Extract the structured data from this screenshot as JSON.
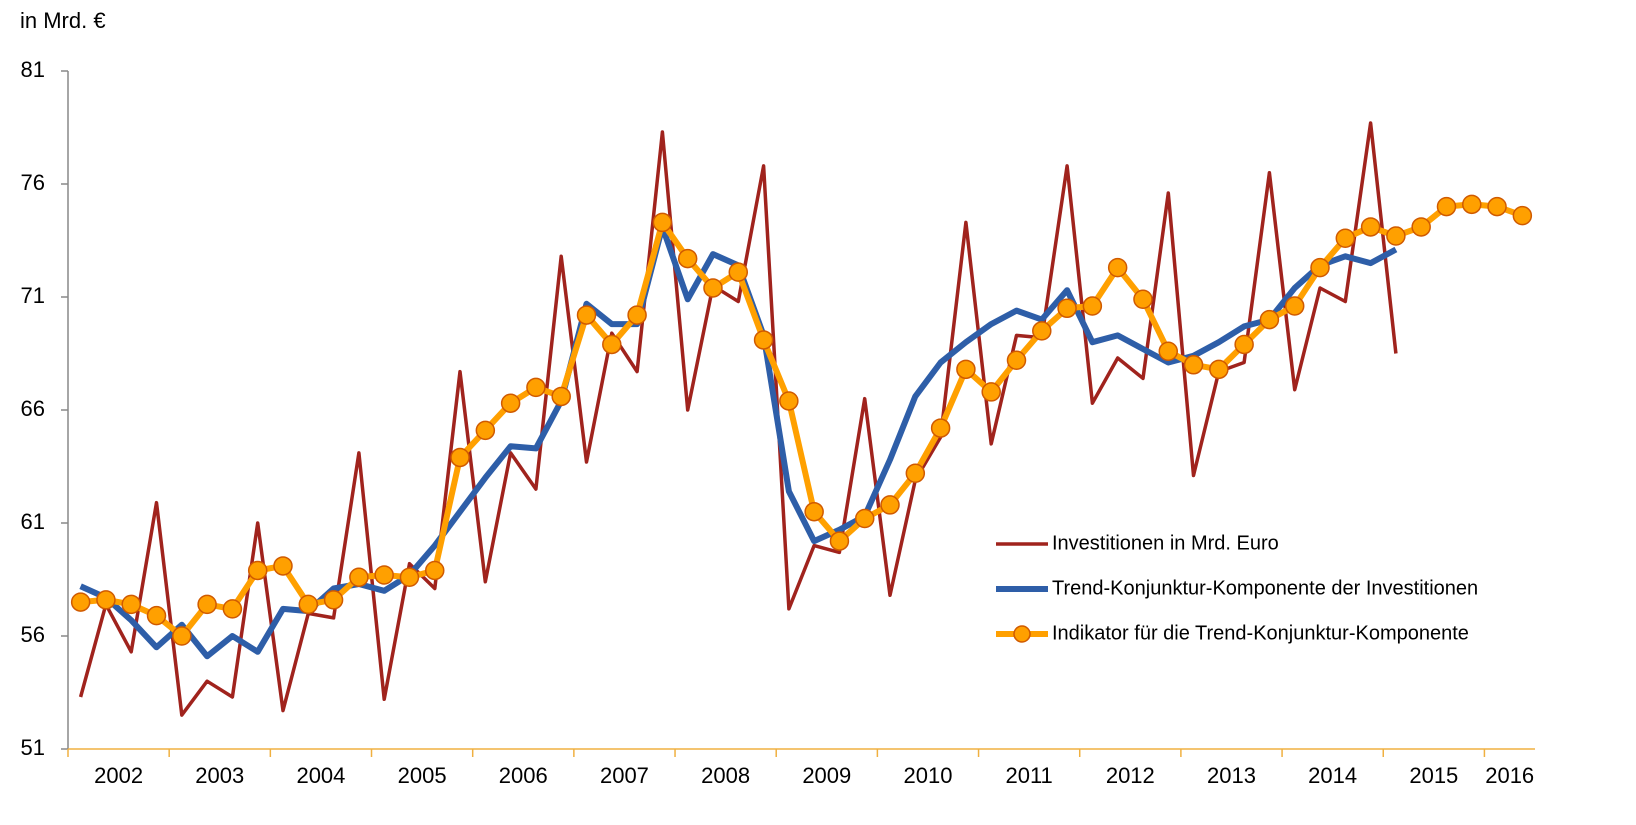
{
  "chart_data": {
    "type": "line",
    "y_axis_label": "in Mrd. €",
    "categories": [
      "2002",
      null,
      null,
      null,
      "2003",
      null,
      null,
      null,
      "2004",
      null,
      null,
      null,
      "2005",
      null,
      null,
      null,
      "2006",
      null,
      null,
      null,
      "2007",
      null,
      null,
      null,
      "2008",
      null,
      null,
      null,
      "2009",
      null,
      null,
      null,
      "2010",
      null,
      null,
      null,
      "2011",
      null,
      null,
      null,
      "2012",
      null,
      null,
      null,
      "2013",
      null,
      null,
      null,
      "2014",
      null,
      null,
      null,
      "2015",
      null,
      null,
      null,
      "2016",
      null
    ],
    "series": [
      {
        "name": "Investitionen in Mrd. Euro",
        "color": "#a0231d",
        "markers": false,
        "values": [
          53.3,
          57.4,
          55.3,
          61.9,
          52.5,
          54.0,
          53.3,
          61.0,
          52.7,
          57.0,
          56.8,
          64.1,
          53.2,
          59.2,
          58.1,
          67.7,
          58.4,
          64.1,
          62.5,
          72.8,
          63.7,
          69.4,
          67.7,
          78.3,
          66.0,
          71.5,
          70.8,
          76.8,
          57.2,
          60.0,
          59.7,
          66.5,
          57.8,
          62.9,
          64.8,
          74.3,
          64.5,
          69.3,
          69.2,
          76.8,
          66.3,
          68.3,
          67.4,
          75.6,
          63.1,
          67.7,
          68.1,
          76.5,
          66.9,
          71.4,
          70.8,
          78.7,
          68.5,
          null,
          null,
          null,
          null,
          null
        ]
      },
      {
        "name": "Trend-Konjunktur-Komponente der Investitionen",
        "color": "#2e5ea8",
        "markers": false,
        "values": [
          58.2,
          57.7,
          56.7,
          55.5,
          56.5,
          55.1,
          56.0,
          55.3,
          57.2,
          57.1,
          58.1,
          58.3,
          58.0,
          58.7,
          60.0,
          61.5,
          63.0,
          64.4,
          64.3,
          66.4,
          70.7,
          69.8,
          69.8,
          74.1,
          70.9,
          72.9,
          72.4,
          69.3,
          62.4,
          60.2,
          60.7,
          61.3,
          63.8,
          66.6,
          68.1,
          69.0,
          69.8,
          70.4,
          70.0,
          71.3,
          69.0,
          69.3,
          68.7,
          68.1,
          68.4,
          69.0,
          69.7,
          70.0,
          71.4,
          72.4,
          72.8,
          72.5,
          73.1,
          null,
          null,
          null,
          null,
          null
        ]
      },
      {
        "name": "Indikator für die Trend-Konjunktur-Komponente",
        "color": "#ffa000",
        "markers": true,
        "values": [
          57.5,
          57.6,
          57.4,
          56.9,
          56.0,
          57.4,
          57.2,
          58.9,
          59.1,
          57.4,
          57.6,
          58.6,
          58.7,
          58.6,
          58.9,
          63.9,
          65.1,
          66.3,
          67.0,
          66.6,
          70.2,
          68.9,
          70.2,
          74.3,
          72.7,
          71.4,
          72.1,
          69.1,
          66.4,
          61.5,
          60.2,
          61.2,
          61.8,
          63.2,
          65.2,
          67.8,
          66.8,
          68.2,
          69.5,
          70.5,
          70.6,
          72.3,
          70.9,
          68.6,
          68.0,
          67.8,
          68.9,
          70.0,
          70.6,
          72.3,
          73.6,
          74.1,
          73.7,
          74.1,
          75.0,
          75.1,
          75.0,
          74.6
        ]
      }
    ],
    "ylim": [
      51,
      81
    ],
    "yticks": [
      51,
      56,
      61,
      66,
      71,
      76,
      81
    ],
    "grid": false,
    "legend": "center right"
  }
}
